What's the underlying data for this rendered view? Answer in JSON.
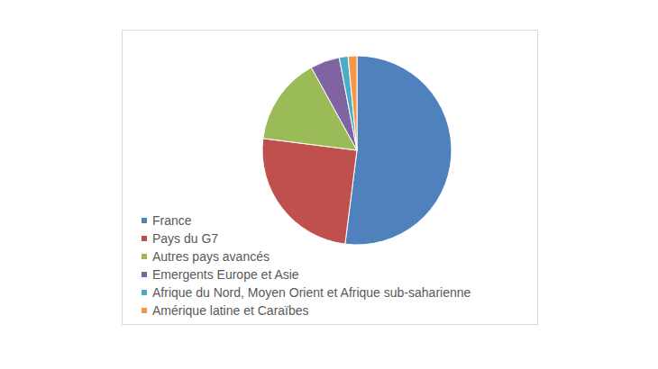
{
  "chart_data": {
    "type": "pie",
    "categories": [
      "France",
      "Pays du G7",
      "Autres pays avancés",
      "Emergents Europe et Asie",
      "Afrique du Nord, Moyen Orient et Afrique sub-saharienne",
      "Amérique latine et Caraïbes"
    ],
    "values": [
      52,
      25,
      15,
      5,
      1.5,
      1.5
    ],
    "colors": [
      "#4f81bd",
      "#c0504d",
      "#9bbb59",
      "#8064a2",
      "#4bacc6",
      "#f79646"
    ],
    "legend": "bottom-left"
  }
}
